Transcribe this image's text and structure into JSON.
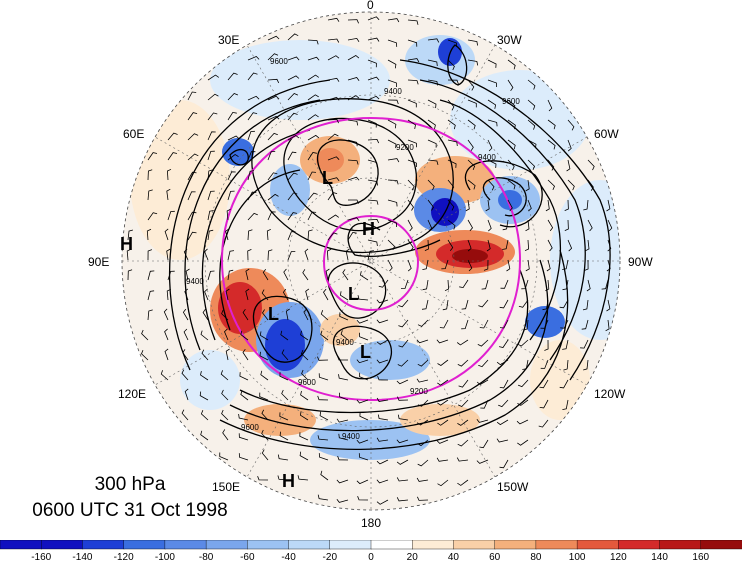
{
  "caption": {
    "level": "300 hPa",
    "datetime": "0600 UTC 31 Oct 1998"
  },
  "longitude_labels": [
    "0",
    "30W",
    "60W",
    "90W",
    "120W",
    "150W",
    "180",
    "150E",
    "120E",
    "90E",
    "60E",
    "30E"
  ],
  "pressure_systems": [
    {
      "label": "H",
      "name": "high-center"
    },
    {
      "label": "L",
      "name": "low-center"
    },
    {
      "label": "L",
      "name": "low-center"
    },
    {
      "label": "L",
      "name": "low-center"
    },
    {
      "label": "L",
      "name": "low-center"
    },
    {
      "label": "H",
      "name": "high-center"
    },
    {
      "label": "H",
      "name": "high-center"
    }
  ],
  "contour_labels": [
    "9600",
    "9400",
    "9200",
    "9400",
    "9600",
    "9400",
    "9200",
    "9400",
    "9600",
    "9400",
    "9600"
  ],
  "colorbar": {
    "ticks": [
      "-160",
      "-140",
      "-120",
      "-100",
      "-80",
      "-60",
      "-40",
      "-20",
      "0",
      "20",
      "40",
      "60",
      "80",
      "100",
      "120",
      "140",
      "160"
    ],
    "colors": [
      "#1010c0",
      "#1e3fd6",
      "#3a6ee0",
      "#5b8ae6",
      "#7aa6ec",
      "#9cc2f2",
      "#bcd9f7",
      "#dcecfb",
      "#ffffff",
      "#fdecd6",
      "#f9d0a8",
      "#f4b07c",
      "#ee8a5a",
      "#e4593c",
      "#d42a2a",
      "#b81818",
      "#960c0c"
    ]
  }
}
